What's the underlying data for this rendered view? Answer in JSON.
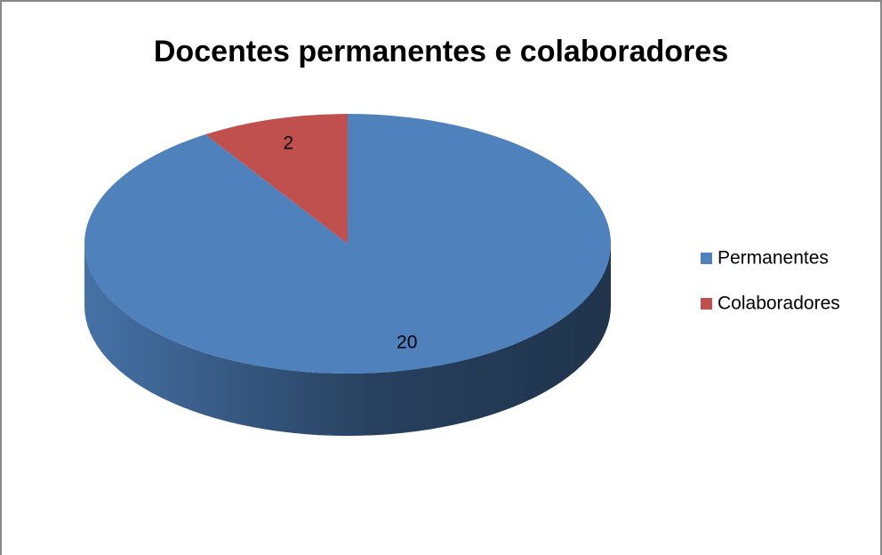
{
  "chart_data": {
    "type": "pie",
    "title": "Docentes permanentes e colaboradores",
    "categories": [
      "Permanentes",
      "Colaboradores"
    ],
    "values": [
      20,
      2
    ],
    "colors": [
      "#4f81bd",
      "#c0504d"
    ],
    "legend": "right"
  }
}
